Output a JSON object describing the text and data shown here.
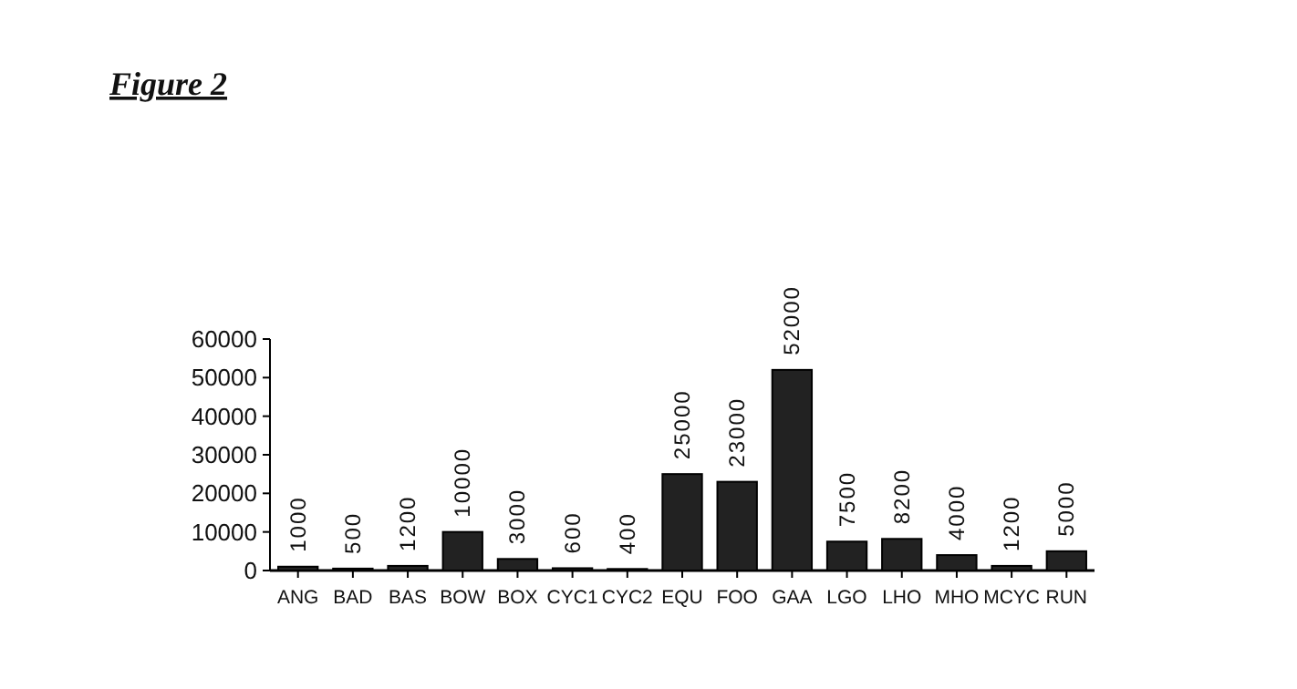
{
  "chart_data": {
    "type": "bar",
    "title": "Figure 2",
    "categories": [
      "ANG",
      "BAD",
      "BAS",
      "BOW",
      "BOX",
      "CYC1",
      "CYC2",
      "EQU",
      "FOO",
      "GAA",
      "LGO",
      "LHO",
      "MHO",
      "MCYC",
      "RUN"
    ],
    "values": [
      1000,
      500,
      1200,
      10000,
      3000,
      600,
      400,
      25000,
      23000,
      52000,
      7500,
      8200,
      4000,
      1200,
      5000
    ],
    "color": "#222222",
    "ylim": [
      0,
      60000
    ],
    "yticks": [
      0,
      10000,
      20000,
      30000,
      40000,
      50000,
      60000
    ],
    "data_labels": true
  }
}
